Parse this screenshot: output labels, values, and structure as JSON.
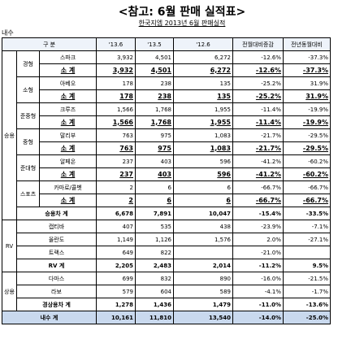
{
  "header": {
    "title": "<참고: 6월 판매 실적표>",
    "subtitle": "한국지엠 2013년 6월 판매실적",
    "section": "내수"
  },
  "table": {
    "columns": [
      "구 분",
      "'13.6",
      "'13.5",
      "'12.6",
      "전월대비증감",
      "전년동월대비"
    ],
    "groups": [
      {
        "label": "승용",
        "segments": [
          {
            "label": "경형",
            "rows": [
              {
                "label": "스파크",
                "cells": [
                  "3,932",
                  "4,501",
                  "6,272",
                  "-12.6%",
                  "-37.3%"
                ]
              },
              {
                "label": "소 계",
                "cells": [
                  "3,932",
                  "4,501",
                  "6,272",
                  "-12.6%",
                  "-37.3%"
                ]
              }
            ]
          },
          {
            "label": "소형",
            "rows": [
              {
                "label": "아베오",
                "cells": [
                  "178",
                  "238",
                  "135",
                  "-25.2%",
                  "31.9%"
                ]
              },
              {
                "label": "소 계",
                "cells": [
                  "178",
                  "238",
                  "135",
                  "-25.2%",
                  "31.9%"
                ]
              }
            ]
          },
          {
            "label": "준중형",
            "rows": [
              {
                "label": "크루즈",
                "cells": [
                  "1,566",
                  "1,768",
                  "1,955",
                  "-11.4%",
                  "-19.9%"
                ]
              },
              {
                "label": "소 계",
                "cells": [
                  "1,566",
                  "1,768",
                  "1,955",
                  "-11.4%",
                  "-19.9%"
                ]
              }
            ]
          },
          {
            "label": "중형",
            "rows": [
              {
                "label": "말리부",
                "cells": [
                  "763",
                  "975",
                  "1,083",
                  "-21.7%",
                  "-29.5%"
                ]
              },
              {
                "label": "소 계",
                "cells": [
                  "763",
                  "975",
                  "1,083",
                  "-21.7%",
                  "-29.5%"
                ]
              }
            ]
          },
          {
            "label": "준대형",
            "rows": [
              {
                "label": "알페온",
                "cells": [
                  "237",
                  "403",
                  "596",
                  "-41.2%",
                  "-60.2%"
                ]
              },
              {
                "label": "소 계",
                "cells": [
                  "237",
                  "403",
                  "596",
                  "-41.2%",
                  "-60.2%"
                ]
              }
            ]
          },
          {
            "label": "스포츠",
            "rows": [
              {
                "label": "카마로/콜벳",
                "cells": [
                  "2",
                  "6",
                  "6",
                  "-66.7%",
                  "-66.7%"
                ]
              },
              {
                "label": "소 계",
                "cells": [
                  "2",
                  "6",
                  "6",
                  "-66.7%",
                  "-66.7%"
                ]
              }
            ]
          }
        ],
        "total": {
          "label": "승용차 계",
          "cells": [
            "6,678",
            "7,891",
            "10,047",
            "-15.4%",
            "-33.5%"
          ]
        }
      },
      {
        "label": "RV",
        "segments": [
          {
            "rows": [
              {
                "label": "캡티바",
                "cells": [
                  "407",
                  "535",
                  "438",
                  "-23.9%",
                  "-7.1%"
                ]
              },
              {
                "label": "올란도",
                "cells": [
                  "1,149",
                  "1,126",
                  "1,576",
                  "2.0%",
                  "-27.1%"
                ]
              },
              {
                "label": "트랙스",
                "cells": [
                  "649",
                  "822",
                  null,
                  "-21.0%",
                  null
                ]
              }
            ]
          }
        ],
        "total": {
          "label": "RV 계",
          "cells": [
            "2,205",
            "2,483",
            "2,014",
            "-11.2%",
            "9.5%"
          ]
        }
      },
      {
        "label": "상용",
        "segments": [
          {
            "rows": [
              {
                "label": "다마스",
                "cells": [
                  "699",
                  "832",
                  "890",
                  "-16.0%",
                  "-21.5%"
                ]
              },
              {
                "label": "라보",
                "cells": [
                  "579",
                  "604",
                  "589",
                  "-4.1%",
                  "-1.7%"
                ]
              }
            ]
          }
        ],
        "total": {
          "label": "경상용차 계",
          "cells": [
            "1,278",
            "1,436",
            "1,479",
            "-11.0%",
            "-13.6%"
          ]
        }
      }
    ],
    "grand_total": {
      "label": "내수 계",
      "cells": [
        "10,161",
        "11,810",
        "13,540",
        "-14.0%",
        "-25.0%"
      ]
    }
  }
}
